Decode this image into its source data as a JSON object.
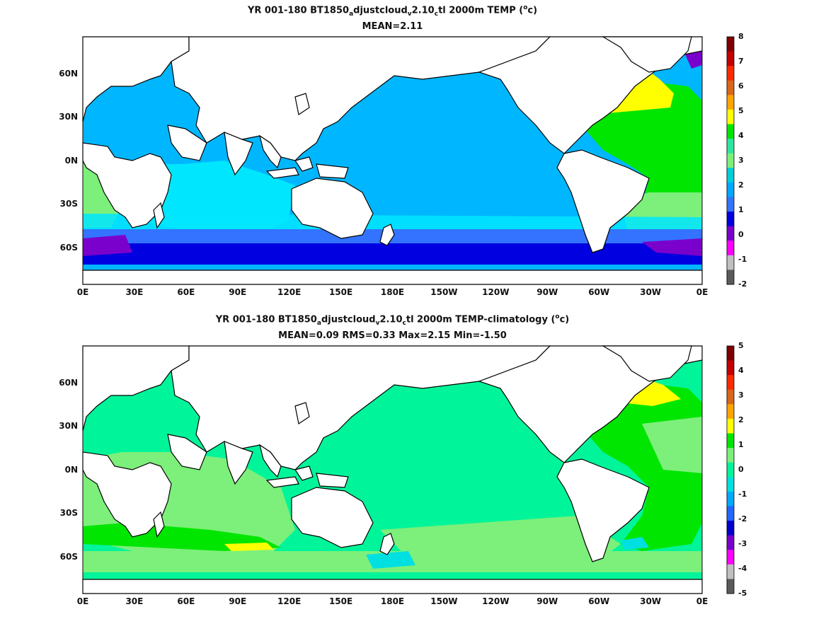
{
  "panels": [
    {
      "title_a": "YR 001-180 BT1850",
      "title_sub1": "a",
      "title_b": "djustcloud",
      "title_sub2": "v",
      "title_c": "2.10",
      "title_sub3": "c",
      "title_d": "tl 2000m TEMP (",
      "title_sup": "o",
      "title_e": "c)",
      "stats": "MEAN=2.11",
      "colorbar_ticks": [
        "8",
        "7",
        "6",
        "5",
        "4",
        "3",
        "2",
        "1",
        "0",
        "-1",
        "-2"
      ],
      "colorbar_colors": [
        "#7f0000",
        "#c40000",
        "#ff2a00",
        "#d9661a",
        "#ffa500",
        "#ffff00",
        "#00e600",
        "#2ee6a0",
        "#7cf07a",
        "#00cfd9",
        "#00a8ff",
        "#3373ff",
        "#0000e0",
        "#7a00cc",
        "#ff00ff",
        "#c0c0c0",
        "#5a5a5a"
      ],
      "ocean_base_color": "#00b7ff"
    },
    {
      "title_a": "YR 001-180 BT1850",
      "title_sub1": "a",
      "title_b": "djustcloud",
      "title_sub2": "v",
      "title_c": "2.10",
      "title_sub3": "c",
      "title_d": "tl 2000m TEMP-climatology (",
      "title_sup": "o",
      "title_e": "c)",
      "stats": "MEAN=0.09   RMS=0.33   Max=2.15   Min=-1.50",
      "colorbar_ticks": [
        "5",
        "4",
        "3",
        "2",
        "1",
        "0",
        "-1",
        "-2",
        "-3",
        "-4",
        "-5"
      ],
      "colorbar_colors": [
        "#7f0000",
        "#c40000",
        "#ff2a00",
        "#d9661a",
        "#ffa500",
        "#ffff00",
        "#00e600",
        "#7cf07a",
        "#00f59a",
        "#00e0e0",
        "#00aaff",
        "#2266ff",
        "#0000cc",
        "#7a00cc",
        "#ff00ff",
        "#c0c0c0",
        "#5a5a5a"
      ],
      "ocean_base_color": "#00f59a"
    }
  ],
  "lat_ticks": [
    "60N",
    "30N",
    "0N",
    "30S",
    "60S"
  ],
  "lon_ticks": [
    "0E",
    "30E",
    "60E",
    "90E",
    "120E",
    "150E",
    "180E",
    "150W",
    "120W",
    "90W",
    "60W",
    "30W",
    "0E"
  ]
}
